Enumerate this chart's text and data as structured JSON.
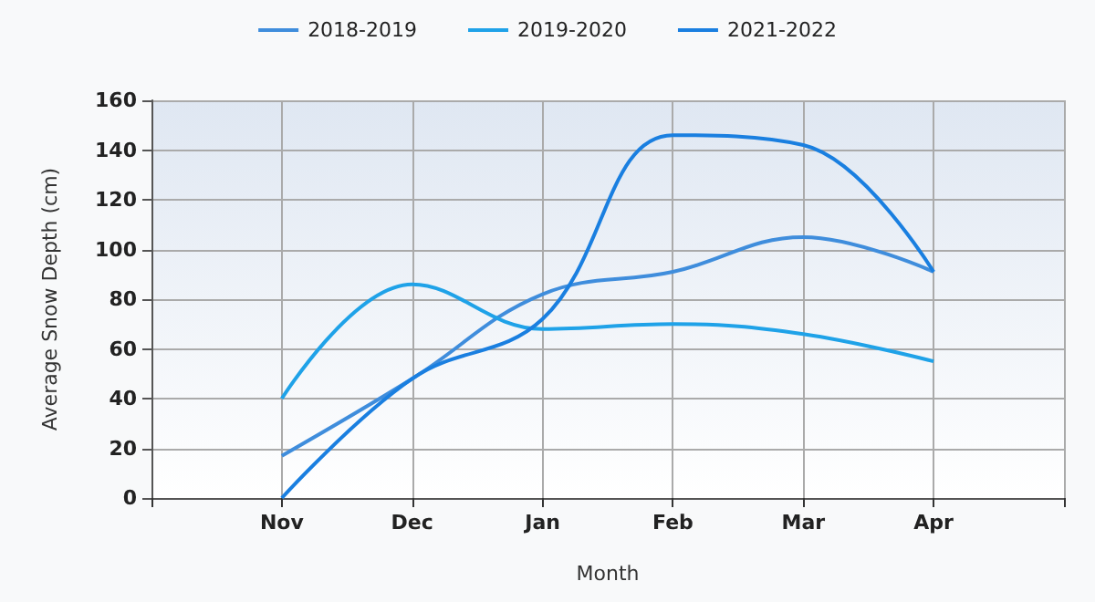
{
  "chart_data": {
    "type": "line",
    "xlabel": "Month",
    "ylabel": "Average Snow Depth (cm)",
    "categories": [
      null,
      "Nov",
      "Dec",
      "Jan",
      "Feb",
      "Mar",
      "Apr",
      null
    ],
    "series": [
      {
        "name": "2018-2019",
        "color": "#3f8ddc",
        "values": [
          null,
          17,
          48,
          82,
          91,
          105,
          91,
          null
        ]
      },
      {
        "name": "2019-2020",
        "color": "#1fa2e8",
        "values": [
          null,
          40,
          86,
          68,
          70,
          66,
          55,
          null
        ]
      },
      {
        "name": "2021-2022",
        "color": "#1a7fe0",
        "values": [
          null,
          0,
          48,
          72,
          146,
          142,
          91,
          null
        ]
      }
    ],
    "ylim": [
      0,
      160
    ],
    "yticks": [
      0,
      20,
      40,
      60,
      80,
      100,
      120,
      140,
      160
    ],
    "grid": true,
    "legend": "top",
    "marker": "none",
    "line_style": "solid"
  }
}
